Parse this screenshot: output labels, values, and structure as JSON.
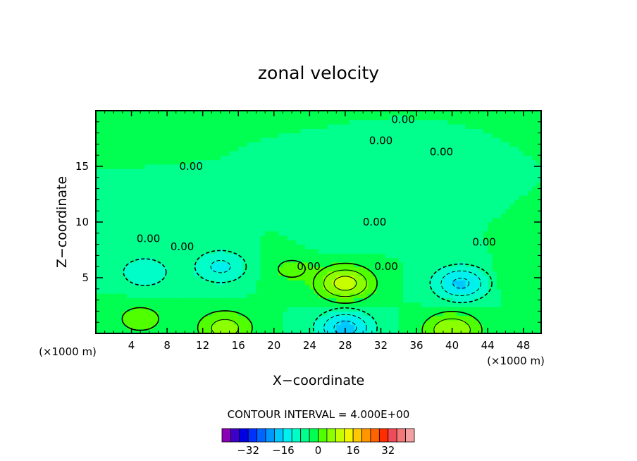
{
  "chart_data": {
    "type": "heatmap",
    "title": "zonal velocity",
    "xlabel": "X−coordinate",
    "ylabel": "Z−coordinate",
    "x_unit_left": "(×1000 m)",
    "x_unit_right": "(×1000 m)",
    "xlim": [
      0,
      50
    ],
    "ylim": [
      0,
      20
    ],
    "x_ticks": [
      4,
      8,
      12,
      16,
      20,
      24,
      28,
      32,
      36,
      40,
      44,
      48
    ],
    "y_ticks": [
      5,
      10,
      15
    ],
    "contour_interval_text": "CONTOUR INTERVAL = 4.000E+00",
    "contour_labels": [
      "0.00",
      "0.00",
      "0.00",
      "0.00",
      "0.00",
      "0.00",
      "0.00",
      "0.00",
      "0.00",
      "0.00"
    ],
    "colorbar": {
      "min": -40,
      "max": 40,
      "step": 4,
      "tick_values": [
        -32,
        -16,
        0,
        16,
        32
      ],
      "tick_labels": [
        "−32",
        "−16",
        "0",
        "16",
        "32"
      ],
      "colors": [
        "#8a00b4",
        "#3c00c8",
        "#0000e6",
        "#0032ff",
        "#0064ff",
        "#0096ff",
        "#00c8ff",
        "#00f0f0",
        "#00ffc8",
        "#00ff8c",
        "#00ff50",
        "#50ff00",
        "#8cff00",
        "#c8ff00",
        "#f5f500",
        "#ffc800",
        "#ff9600",
        "#ff6400",
        "#ff2d00",
        "#f04b5a",
        "#f57878",
        "#f5a0a0"
      ]
    },
    "features": [
      {
        "x": 28,
        "z": 4.5,
        "value": 14,
        "kind": "max"
      },
      {
        "x": 14.5,
        "z": 0.5,
        "value": 10,
        "kind": "max"
      },
      {
        "x": 40,
        "z": 0.3,
        "value": 12,
        "kind": "max"
      },
      {
        "x": 5,
        "z": 1.3,
        "value": 6,
        "kind": "max"
      },
      {
        "x": 22,
        "z": 5.8,
        "value": 5,
        "kind": "max"
      },
      {
        "x": 47,
        "z": 5,
        "value": 4,
        "kind": "max"
      },
      {
        "x": 14,
        "z": 6,
        "value": -9,
        "kind": "min"
      },
      {
        "x": 5.5,
        "z": 5.5,
        "value": -7,
        "kind": "min"
      },
      {
        "x": 41,
        "z": 4.5,
        "value": -13,
        "kind": "min"
      },
      {
        "x": 28,
        "z": 0.5,
        "value": -14,
        "kind": "min"
      },
      {
        "x": 27,
        "z": 9,
        "value": -4,
        "kind": "min"
      },
      {
        "x": 34,
        "z": 10,
        "value": -4,
        "kind": "min"
      }
    ]
  }
}
